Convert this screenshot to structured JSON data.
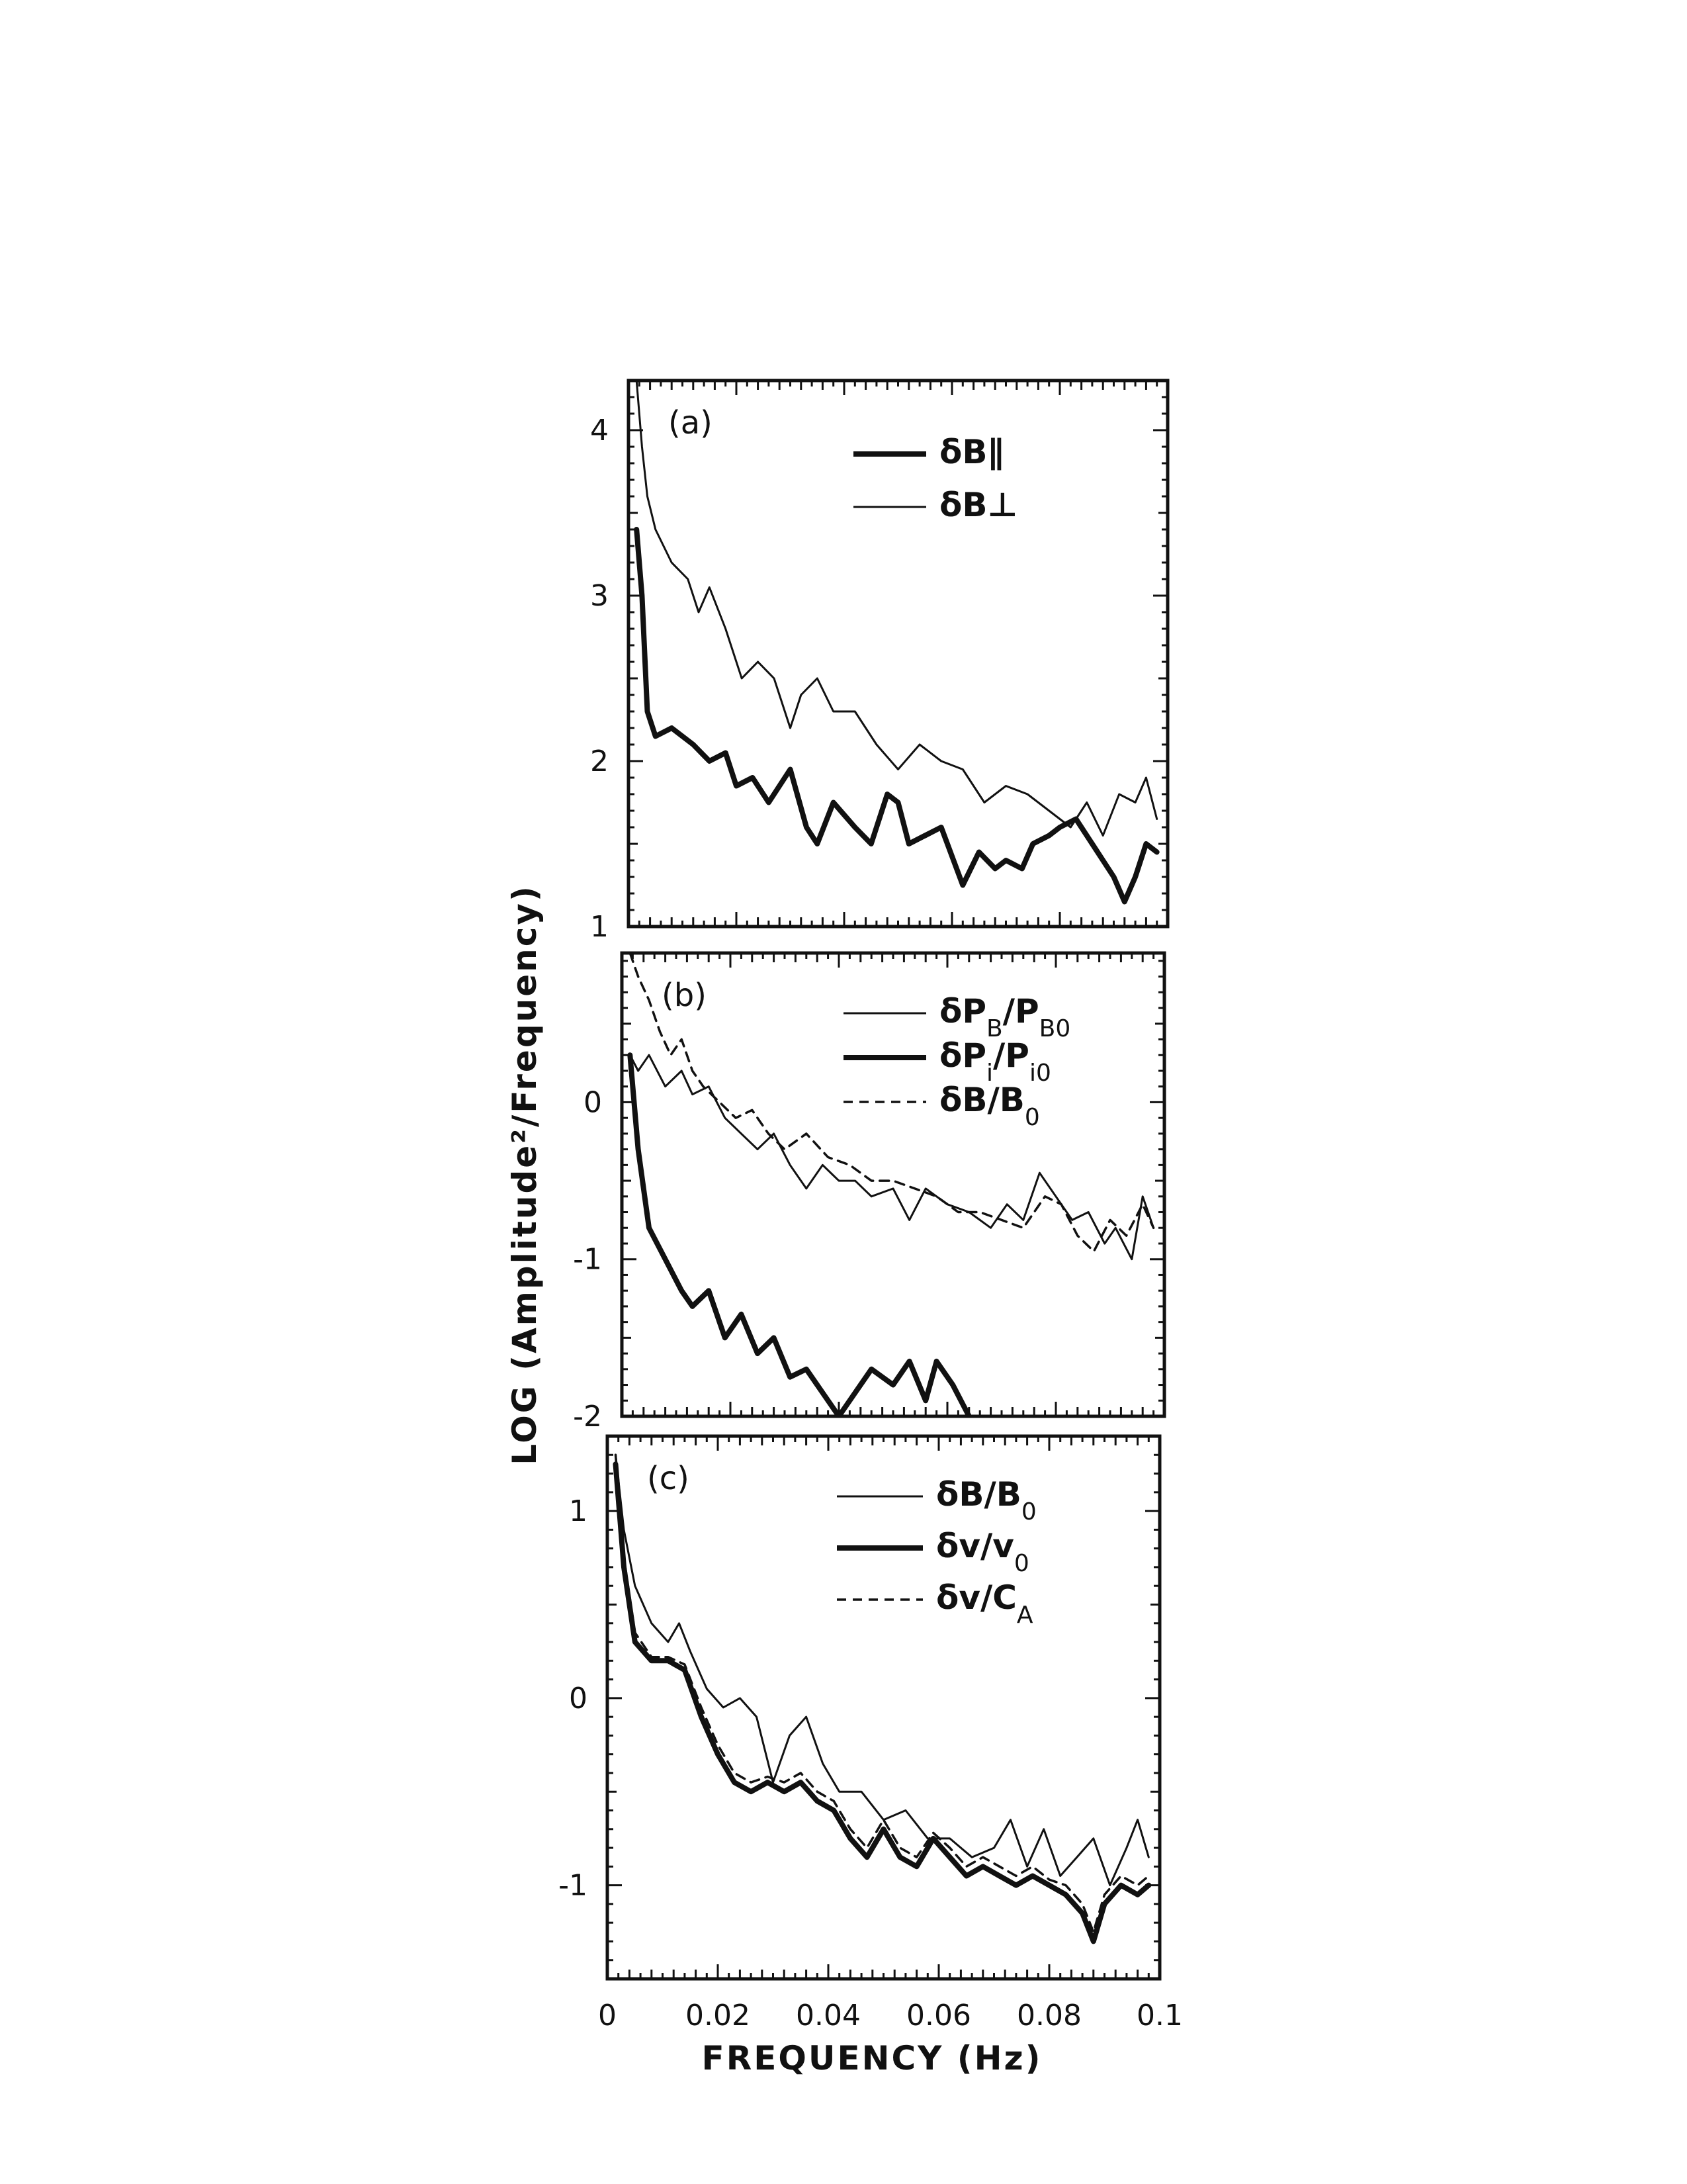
{
  "chart_data": [
    {
      "type": "line",
      "panel_label": "(a)",
      "xlim": [
        0,
        0.1
      ],
      "ylim": [
        1,
        4.3
      ],
      "yticks": [
        "1",
        "2",
        "3",
        "4"
      ],
      "ytick_values": [
        1,
        2,
        3,
        4
      ],
      "legend_position": "top-right",
      "series": [
        {
          "name": "δB∥",
          "style": "thick",
          "x": [
            0.0015,
            0.0025,
            0.0035,
            0.005,
            0.008,
            0.012,
            0.015,
            0.018,
            0.02,
            0.023,
            0.026,
            0.03,
            0.033,
            0.035,
            0.038,
            0.042,
            0.045,
            0.048,
            0.05,
            0.052,
            0.055,
            0.058,
            0.062,
            0.065,
            0.068,
            0.07,
            0.073,
            0.075,
            0.078,
            0.08,
            0.083,
            0.086,
            0.088,
            0.09,
            0.092,
            0.094,
            0.096,
            0.098
          ],
          "y": [
            3.4,
            3.0,
            2.3,
            2.15,
            2.2,
            2.1,
            2.0,
            2.05,
            1.85,
            1.9,
            1.75,
            1.95,
            1.6,
            1.5,
            1.75,
            1.6,
            1.5,
            1.8,
            1.75,
            1.5,
            1.55,
            1.6,
            1.25,
            1.45,
            1.35,
            1.4,
            1.35,
            1.5,
            1.55,
            1.6,
            1.65,
            1.5,
            1.4,
            1.3,
            1.15,
            1.3,
            1.5,
            1.45
          ]
        },
        {
          "name": "δB⊥",
          "style": "thin",
          "x": [
            0.0015,
            0.0025,
            0.0035,
            0.005,
            0.008,
            0.011,
            0.013,
            0.015,
            0.018,
            0.021,
            0.024,
            0.027,
            0.03,
            0.032,
            0.035,
            0.038,
            0.042,
            0.046,
            0.05,
            0.054,
            0.058,
            0.062,
            0.066,
            0.07,
            0.074,
            0.078,
            0.082,
            0.085,
            0.088,
            0.091,
            0.094,
            0.096,
            0.098
          ],
          "y": [
            4.3,
            3.9,
            3.6,
            3.4,
            3.2,
            3.1,
            2.9,
            3.05,
            2.8,
            2.5,
            2.6,
            2.5,
            2.2,
            2.4,
            2.5,
            2.3,
            2.3,
            2.1,
            1.95,
            2.1,
            2.0,
            1.95,
            1.75,
            1.85,
            1.8,
            1.7,
            1.6,
            1.75,
            1.55,
            1.8,
            1.75,
            1.9,
            1.65
          ]
        }
      ]
    },
    {
      "type": "line",
      "panel_label": "(b)",
      "xlim": [
        0,
        0.1
      ],
      "ylim": [
        -2,
        0.95
      ],
      "yticks": [
        "-2",
        "-1",
        "0"
      ],
      "ytick_values": [
        -2,
        -1,
        0
      ],
      "legend_position": "top-right",
      "series": [
        {
          "name": "δP_B/P_B0",
          "style": "thin",
          "x": [
            0.0015,
            0.003,
            0.005,
            0.008,
            0.011,
            0.013,
            0.016,
            0.019,
            0.022,
            0.025,
            0.028,
            0.031,
            0.034,
            0.037,
            0.04,
            0.043,
            0.046,
            0.05,
            0.053,
            0.056,
            0.06,
            0.064,
            0.068,
            0.071,
            0.074,
            0.077,
            0.08,
            0.083,
            0.086,
            0.089,
            0.091,
            0.094,
            0.096,
            0.098
          ],
          "y": [
            0.3,
            0.2,
            0.3,
            0.1,
            0.2,
            0.05,
            0.1,
            -0.1,
            -0.2,
            -0.3,
            -0.2,
            -0.4,
            -0.55,
            -0.4,
            -0.5,
            -0.5,
            -0.6,
            -0.55,
            -0.75,
            -0.55,
            -0.65,
            -0.7,
            -0.8,
            -0.65,
            -0.75,
            -0.45,
            -0.6,
            -0.75,
            -0.7,
            -0.9,
            -0.8,
            -1.0,
            -0.6,
            -0.8
          ]
        },
        {
          "name": "δP_i/P_i0",
          "style": "thick",
          "x": [
            0.0015,
            0.003,
            0.005,
            0.008,
            0.011,
            0.013,
            0.016,
            0.019,
            0.022,
            0.025,
            0.028,
            0.031,
            0.034,
            0.037,
            0.04,
            0.043,
            0.046,
            0.05,
            0.053,
            0.056,
            0.058,
            0.061,
            0.064
          ],
          "y": [
            0.3,
            -0.3,
            -0.8,
            -1.0,
            -1.2,
            -1.3,
            -1.2,
            -1.5,
            -1.35,
            -1.6,
            -1.5,
            -1.75,
            -1.7,
            -1.85,
            -2.0,
            -1.85,
            -1.7,
            -1.8,
            -1.65,
            -1.9,
            -1.65,
            -1.8,
            -2.0
          ]
        },
        {
          "name": "δB/B_0",
          "style": "dashed",
          "x": [
            0.0015,
            0.003,
            0.005,
            0.007,
            0.009,
            0.011,
            0.013,
            0.015,
            0.018,
            0.021,
            0.024,
            0.027,
            0.03,
            0.034,
            0.038,
            0.042,
            0.046,
            0.05,
            0.054,
            0.058,
            0.062,
            0.066,
            0.07,
            0.074,
            0.078,
            0.081,
            0.084,
            0.087,
            0.09,
            0.093,
            0.096,
            0.098
          ],
          "y": [
            0.95,
            0.8,
            0.65,
            0.45,
            0.3,
            0.4,
            0.2,
            0.1,
            0.0,
            -0.1,
            -0.05,
            -0.2,
            -0.3,
            -0.2,
            -0.35,
            -0.4,
            -0.5,
            -0.5,
            -0.55,
            -0.6,
            -0.7,
            -0.7,
            -0.75,
            -0.8,
            -0.6,
            -0.65,
            -0.85,
            -0.95,
            -0.75,
            -0.85,
            -0.65,
            -0.8
          ]
        }
      ]
    },
    {
      "type": "line",
      "panel_label": "(c)",
      "xlim": [
        0,
        0.1
      ],
      "ylim": [
        -1.5,
        1.4
      ],
      "yticks": [
        "-1",
        "0",
        "1"
      ],
      "ytick_values": [
        -1,
        0,
        1
      ],
      "xticks": [
        "0",
        "0.02",
        "0.04",
        "0.06",
        "0.08",
        "0.1"
      ],
      "xtick_values": [
        0,
        0.02,
        0.04,
        0.06,
        0.08,
        0.1
      ],
      "legend_position": "top-right",
      "series": [
        {
          "name": "δB/B_0",
          "style": "thin",
          "x": [
            0.0015,
            0.003,
            0.005,
            0.008,
            0.011,
            0.013,
            0.015,
            0.018,
            0.021,
            0.024,
            0.027,
            0.03,
            0.033,
            0.036,
            0.039,
            0.042,
            0.046,
            0.05,
            0.054,
            0.058,
            0.062,
            0.066,
            0.07,
            0.073,
            0.076,
            0.079,
            0.082,
            0.085,
            0.088,
            0.091,
            0.094,
            0.096,
            0.098
          ],
          "y": [
            1.3,
            0.9,
            0.6,
            0.4,
            0.3,
            0.4,
            0.25,
            0.05,
            -0.05,
            0.0,
            -0.1,
            -0.45,
            -0.2,
            -0.1,
            -0.35,
            -0.5,
            -0.5,
            -0.65,
            -0.6,
            -0.75,
            -0.75,
            -0.85,
            -0.8,
            -0.65,
            -0.9,
            -0.7,
            -0.95,
            -0.85,
            -0.75,
            -1.0,
            -0.8,
            -0.65,
            -0.85
          ]
        },
        {
          "name": "δv/v_0",
          "style": "thick",
          "x": [
            0.0015,
            0.003,
            0.005,
            0.008,
            0.011,
            0.014,
            0.017,
            0.02,
            0.023,
            0.026,
            0.029,
            0.032,
            0.035,
            0.038,
            0.041,
            0.044,
            0.047,
            0.05,
            0.053,
            0.056,
            0.059,
            0.062,
            0.065,
            0.068,
            0.071,
            0.074,
            0.077,
            0.08,
            0.083,
            0.086,
            0.088,
            0.09,
            0.093,
            0.096,
            0.098
          ],
          "y": [
            1.25,
            0.7,
            0.3,
            0.2,
            0.2,
            0.15,
            -0.1,
            -0.3,
            -0.45,
            -0.5,
            -0.45,
            -0.5,
            -0.45,
            -0.55,
            -0.6,
            -0.75,
            -0.85,
            -0.7,
            -0.85,
            -0.9,
            -0.75,
            -0.85,
            -0.95,
            -0.9,
            -0.95,
            -1.0,
            -0.95,
            -1.0,
            -1.05,
            -1.15,
            -1.3,
            -1.1,
            -1.0,
            -1.05,
            -1.0
          ]
        },
        {
          "name": "δv/C_A",
          "style": "dashed",
          "x": [
            0.0015,
            0.003,
            0.005,
            0.008,
            0.011,
            0.014,
            0.017,
            0.02,
            0.023,
            0.026,
            0.029,
            0.032,
            0.035,
            0.038,
            0.041,
            0.044,
            0.047,
            0.05,
            0.053,
            0.056,
            0.059,
            0.062,
            0.065,
            0.068,
            0.071,
            0.074,
            0.077,
            0.08,
            0.083,
            0.086,
            0.088,
            0.09,
            0.093,
            0.096,
            0.098
          ],
          "y": [
            1.3,
            0.75,
            0.35,
            0.22,
            0.22,
            0.18,
            -0.05,
            -0.25,
            -0.4,
            -0.45,
            -0.42,
            -0.45,
            -0.4,
            -0.5,
            -0.55,
            -0.7,
            -0.8,
            -0.65,
            -0.8,
            -0.85,
            -0.72,
            -0.8,
            -0.9,
            -0.85,
            -0.9,
            -0.95,
            -0.9,
            -0.97,
            -1.0,
            -1.1,
            -1.25,
            -1.05,
            -0.95,
            -1.0,
            -0.95
          ]
        }
      ]
    }
  ],
  "axes": {
    "ylabel": "LOG (Amplitude²/Frequency)",
    "xlabel": "FREQUENCY (Hz)"
  }
}
